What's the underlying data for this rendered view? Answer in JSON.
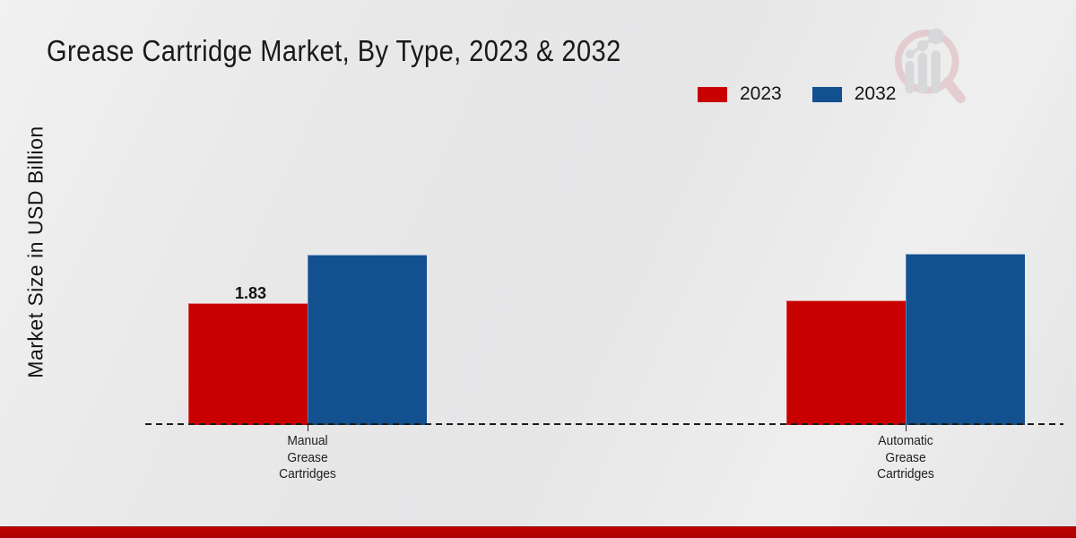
{
  "chart_data": {
    "type": "bar",
    "title": "Grease Cartridge Market, By Type, 2023 & 2032",
    "xlabel": "",
    "ylabel": "Market Size in USD Billion",
    "units": "USD Billion",
    "categories": [
      "Manual Grease Cartridges",
      "Automatic Grease Cartridges"
    ],
    "series": [
      {
        "name": "2023",
        "color": "#c80100",
        "values": [
          1.83,
          1.87
        ]
      },
      {
        "name": "2032",
        "color": "#12508f",
        "values": [
          2.56,
          2.57
        ]
      }
    ],
    "data_labels": [
      [
        "1.83",
        ""
      ],
      [
        "",
        ""
      ]
    ],
    "ylim": [
      0,
      3
    ],
    "grid": false,
    "legend_position": "top-right",
    "baseline_style": "dashed",
    "background_color": "#e9e9ea"
  },
  "watermark": {
    "name": "market-research-magnifier-logo"
  },
  "footer": {
    "accent_color": "#bd0100"
  }
}
